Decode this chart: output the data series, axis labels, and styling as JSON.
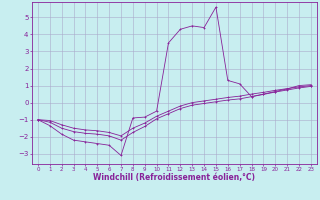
{
  "background_color": "#c8eef0",
  "grid_color": "#aaaacc",
  "line_color": "#882299",
  "xlabel": "Windchill (Refroidissement éolien,°C)",
  "xlabel_fontsize": 5.5,
  "yticks": [
    -3,
    -2,
    -1,
    0,
    1,
    2,
    3,
    4,
    5
  ],
  "xticks": [
    0,
    1,
    2,
    3,
    4,
    5,
    6,
    7,
    8,
    9,
    10,
    11,
    12,
    13,
    14,
    15,
    16,
    17,
    18,
    19,
    20,
    21,
    22,
    23
  ],
  "xlim": [
    -0.5,
    23.5
  ],
  "ylim": [
    -3.6,
    5.9
  ],
  "line1_x": [
    0,
    1,
    2,
    3,
    4,
    5,
    6,
    7,
    8,
    9,
    10,
    11,
    12,
    13,
    14,
    15,
    16,
    17,
    18,
    19,
    20,
    21,
    22,
    23
  ],
  "line1_y": [
    -1.0,
    -1.35,
    -1.85,
    -2.2,
    -2.3,
    -2.4,
    -2.5,
    -3.1,
    -0.9,
    -0.85,
    -0.5,
    3.5,
    4.3,
    4.5,
    4.4,
    5.6,
    1.3,
    1.1,
    0.35,
    0.5,
    0.65,
    0.8,
    1.0,
    1.05
  ],
  "line2_x": [
    0,
    1,
    2,
    3,
    4,
    5,
    6,
    7,
    8,
    9,
    10,
    11,
    12,
    13,
    14,
    15,
    16,
    17,
    18,
    19,
    20,
    21,
    22,
    23
  ],
  "line2_y": [
    -1.0,
    -1.05,
    -1.3,
    -1.5,
    -1.6,
    -1.65,
    -1.75,
    -1.95,
    -1.5,
    -1.2,
    -0.8,
    -0.5,
    -0.2,
    0.0,
    0.1,
    0.2,
    0.3,
    0.38,
    0.5,
    0.6,
    0.72,
    0.82,
    0.92,
    1.0
  ],
  "line3_x": [
    0,
    1,
    2,
    3,
    4,
    5,
    6,
    7,
    8,
    9,
    10,
    11,
    12,
    13,
    14,
    15,
    16,
    17,
    18,
    19,
    20,
    21,
    22,
    23
  ],
  "line3_y": [
    -1.0,
    -1.15,
    -1.5,
    -1.7,
    -1.8,
    -1.85,
    -1.95,
    -2.2,
    -1.75,
    -1.4,
    -0.95,
    -0.65,
    -0.35,
    -0.15,
    -0.05,
    0.05,
    0.15,
    0.22,
    0.35,
    0.48,
    0.62,
    0.74,
    0.86,
    0.95
  ]
}
